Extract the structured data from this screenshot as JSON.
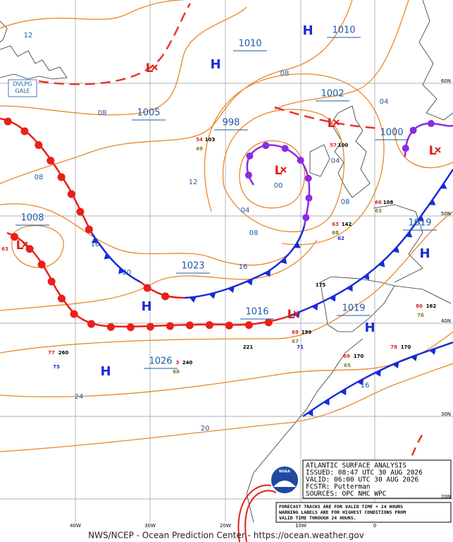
{
  "map": {
    "highs": [
      "H",
      "H",
      "H",
      "H",
      "H",
      "H"
    ],
    "lows": [
      "L",
      "L",
      "L",
      "L",
      "L",
      "L"
    ],
    "pressures": [
      "1010",
      "1010",
      "1002",
      "1005",
      "998",
      "1000",
      "1008",
      "1023",
      "1016",
      "1019",
      "1019",
      "1026"
    ],
    "isobar_labels": [
      "12",
      "08",
      "04",
      "08",
      "08",
      "12",
      "04",
      "00",
      "08",
      "04",
      "08",
      "16",
      "20",
      "16",
      "24",
      "20",
      "16"
    ],
    "stations": [
      "54",
      "103",
      "49",
      "57",
      "100",
      "66",
      "108",
      "63",
      "63",
      "142",
      "68",
      "62",
      "175",
      "69",
      "199",
      "67",
      "71",
      "221",
      "77",
      "260",
      "75",
      "3",
      "240",
      "68",
      "69",
      "170",
      "65",
      "78",
      "170",
      "80",
      "162",
      "76",
      "63"
    ],
    "warning": [
      "DVLPG",
      "GALE"
    ],
    "lat_labels": [
      "60N",
      "50N",
      "40N",
      "30N",
      "20N"
    ],
    "lon_labels": [
      "40W",
      "30W",
      "20W",
      "10W",
      "0"
    ],
    "info": [
      "ATLANTIC SURFACE ANALYSIS",
      "ISSUED: 08:47 UTC 30 AUG 2026",
      "VALID: 06:00 UTC 30 AUG 2026",
      "FCSTR: Putterman",
      "SOURCES: OPC NHC WPC"
    ],
    "logo": "NOAA",
    "note": [
      "FORECAST TRACKS ARE FOR VALID TIME + 24 HOURS",
      "WARNING LABELS ARE FOR HIGHEST CONDITIONS FROM",
      "VALID TIME THROUGH 24 HOURS."
    ],
    "footer": "NWS/NCEP - Ocean Prediction Center - https://ocean.weather.gov"
  }
}
